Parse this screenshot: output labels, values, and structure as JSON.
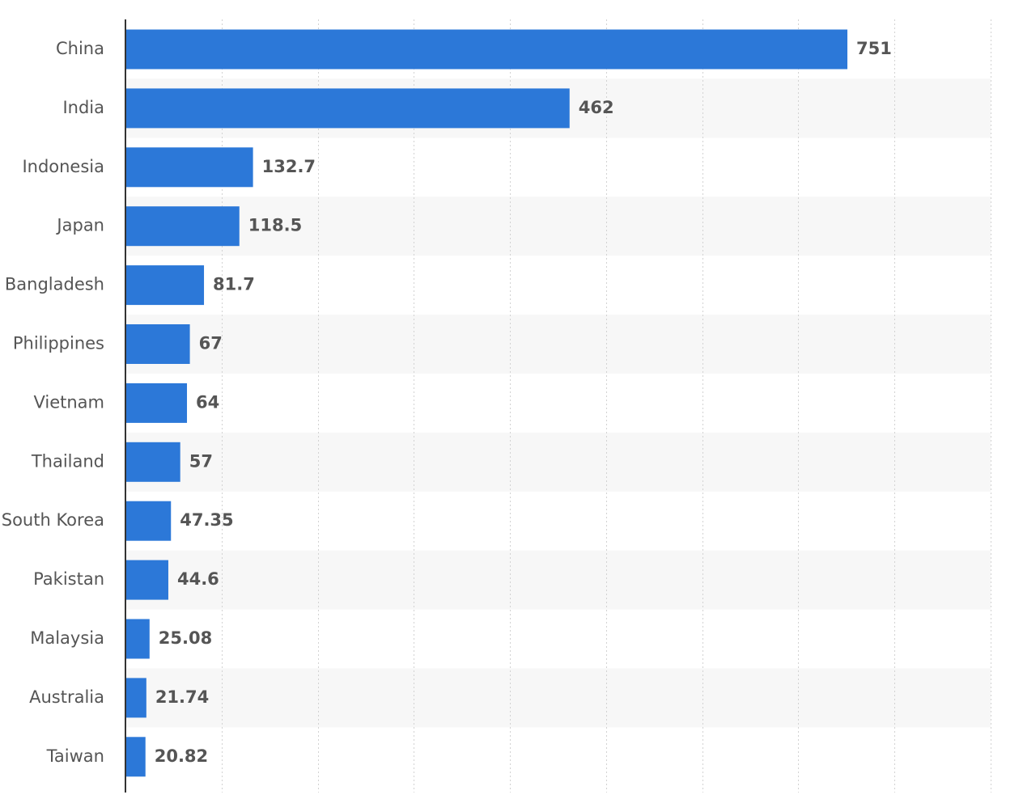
{
  "chart_data": {
    "type": "bar",
    "orientation": "horizontal",
    "categories": [
      "China",
      "India",
      "Indonesia",
      "Japan",
      "Bangladesh",
      "Philippines",
      "Vietnam",
      "Thailand",
      "South Korea",
      "Pakistan",
      "Malaysia",
      "Australia",
      "Taiwan"
    ],
    "values": [
      751,
      462,
      132.7,
      118.5,
      81.7,
      67,
      64,
      57,
      47.35,
      44.6,
      25.08,
      21.74,
      20.82
    ],
    "value_labels": [
      "751",
      "462",
      "132.7",
      "118.5",
      "81.7",
      "67",
      "64",
      "57",
      "47.35",
      "44.6",
      "25.08",
      "21.74",
      "20.82"
    ],
    "xlim": [
      0,
      900
    ],
    "x_gridlines": [
      100,
      200,
      300,
      400,
      500,
      600,
      700,
      800,
      900
    ],
    "grid": true,
    "alternating_row_bands": true,
    "title": "",
    "xlabel": "",
    "ylabel": "",
    "bar_color": "#2c78d8",
    "band_color": "#f7f7f7",
    "label_color": "#555555"
  }
}
